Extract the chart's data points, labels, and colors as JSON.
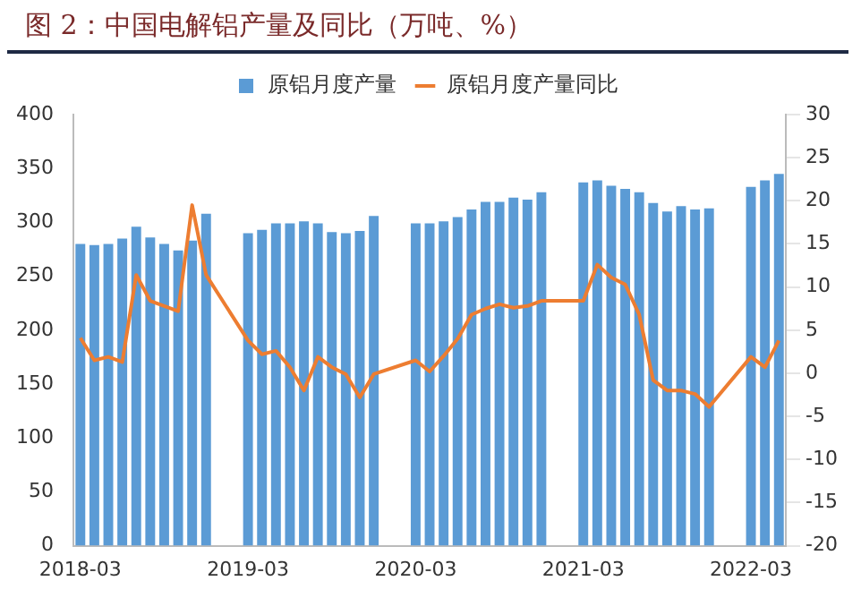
{
  "chart_data": {
    "type": "bar",
    "title": "图 2：中国电解铝产量及同比（万吨、%）",
    "categories": [
      "2018-03",
      null,
      null,
      null,
      null,
      null,
      null,
      null,
      null,
      null,
      null,
      null,
      "2019-03",
      null,
      null,
      null,
      null,
      null,
      null,
      null,
      null,
      null,
      null,
      null,
      "2020-03",
      null,
      null,
      null,
      null,
      null,
      null,
      null,
      null,
      null,
      null,
      null,
      "2021-03",
      null,
      null,
      null,
      null,
      null,
      null,
      null,
      null,
      null,
      null,
      null,
      "2022-03",
      null,
      null
    ],
    "series": [
      {
        "name": "原铝月度产量",
        "color": "#5b9bd5",
        "values": [
          280,
          279,
          280,
          285,
          296,
          286,
          280,
          274,
          283,
          308,
          null,
          null,
          290,
          293,
          299,
          299,
          301,
          299,
          291,
          290,
          292,
          306,
          null,
          null,
          299,
          299,
          301,
          305,
          312,
          319,
          319,
          323,
          321,
          328,
          null,
          null,
          337,
          339,
          334,
          331,
          328,
          318,
          310,
          315,
          312,
          313,
          null,
          null,
          333,
          339,
          345
        ]
      },
      {
        "name": "原铝月度产量同比",
        "type": "line",
        "axis": "y2",
        "color": "#ed7d31",
        "values": [
          4.1,
          1.5,
          1.9,
          1.3,
          11.4,
          8.4,
          7.8,
          7.2,
          19.5,
          11.4,
          null,
          null,
          3.8,
          2.2,
          2.6,
          0.7,
          -2.0,
          1.9,
          0.7,
          -0.1,
          -2.8,
          -0.1,
          null,
          null,
          1.5,
          0.2,
          2.0,
          4.0,
          6.8,
          7.5,
          8.0,
          7.6,
          7.8,
          8.4,
          null,
          null,
          8.4,
          12.6,
          11.1,
          10.3,
          6.8,
          -0.8,
          -2.0,
          -2.0,
          -2.4,
          -3.9,
          null,
          null,
          1.9,
          0.7,
          3.8
        ]
      }
    ],
    "ylim": [
      0,
      400
    ],
    "yticks": [
      0,
      50,
      100,
      150,
      200,
      250,
      300,
      350,
      400
    ],
    "y2lim": [
      -20,
      30
    ],
    "y2ticks": [
      -20,
      -15,
      -10,
      -5,
      0,
      5,
      10,
      15,
      20,
      25,
      30
    ],
    "grid": false,
    "legend": "top",
    "marker": "none",
    "line_style": "solid"
  }
}
